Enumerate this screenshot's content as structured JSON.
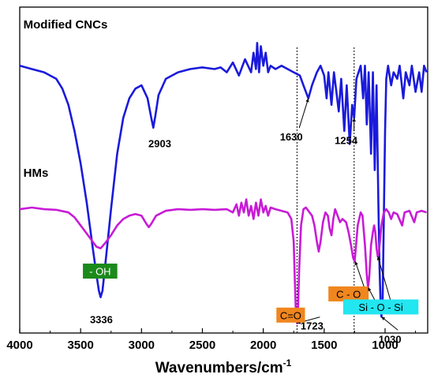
{
  "chart_data": {
    "type": "line",
    "xlabel": "Wavenumbers/cm",
    "xlabel_sup": "-1",
    "xlim": [
      4000,
      650
    ],
    "x_reversed": true,
    "x_ticks": [
      4000,
      3500,
      3000,
      2500,
      2000,
      1500,
      1000
    ],
    "y_ticks_visible": false,
    "grid": false,
    "series": [
      {
        "name": "Modified CNCs",
        "color": "#1a1adb",
        "points": [
          [
            4000,
            0.82
          ],
          [
            3900,
            0.81
          ],
          [
            3800,
            0.8
          ],
          [
            3700,
            0.78
          ],
          [
            3650,
            0.75
          ],
          [
            3600,
            0.7
          ],
          [
            3550,
            0.62
          ],
          [
            3500,
            0.52
          ],
          [
            3450,
            0.4
          ],
          [
            3400,
            0.26
          ],
          [
            3370,
            0.18
          ],
          [
            3350,
            0.13
          ],
          [
            3336,
            0.11
          ],
          [
            3320,
            0.13
          ],
          [
            3300,
            0.2
          ],
          [
            3250,
            0.38
          ],
          [
            3200,
            0.55
          ],
          [
            3150,
            0.66
          ],
          [
            3100,
            0.72
          ],
          [
            3050,
            0.75
          ],
          [
            3000,
            0.76
          ],
          [
            2950,
            0.72
          ],
          [
            2920,
            0.66
          ],
          [
            2903,
            0.63
          ],
          [
            2885,
            0.67
          ],
          [
            2860,
            0.73
          ],
          [
            2800,
            0.78
          ],
          [
            2700,
            0.8
          ],
          [
            2600,
            0.81
          ],
          [
            2500,
            0.815
          ],
          [
            2400,
            0.81
          ],
          [
            2350,
            0.815
          ],
          [
            2300,
            0.8
          ],
          [
            2250,
            0.83
          ],
          [
            2200,
            0.79
          ],
          [
            2150,
            0.84
          ],
          [
            2100,
            0.8
          ],
          [
            2080,
            0.86
          ],
          [
            2060,
            0.81
          ],
          [
            2050,
            0.89
          ],
          [
            2035,
            0.8
          ],
          [
            2020,
            0.88
          ],
          [
            2000,
            0.82
          ],
          [
            1980,
            0.86
          ],
          [
            1960,
            0.8
          ],
          [
            1940,
            0.82
          ],
          [
            1900,
            0.81
          ],
          [
            1850,
            0.82
          ],
          [
            1800,
            0.81
          ],
          [
            1750,
            0.8
          ],
          [
            1700,
            0.79
          ],
          [
            1660,
            0.75
          ],
          [
            1630,
            0.72
          ],
          [
            1600,
            0.76
          ],
          [
            1560,
            0.8
          ],
          [
            1530,
            0.82
          ],
          [
            1500,
            0.79
          ],
          [
            1480,
            0.72
          ],
          [
            1465,
            0.8
          ],
          [
            1440,
            0.7
          ],
          [
            1420,
            0.8
          ],
          [
            1400,
            0.74
          ],
          [
            1380,
            0.68
          ],
          [
            1360,
            0.78
          ],
          [
            1335,
            0.62
          ],
          [
            1315,
            0.76
          ],
          [
            1290,
            0.58
          ],
          [
            1270,
            0.7
          ],
          [
            1254,
            0.66
          ],
          [
            1235,
            0.78
          ],
          [
            1200,
            0.82
          ],
          [
            1180,
            0.72
          ],
          [
            1165,
            0.82
          ],
          [
            1150,
            0.64
          ],
          [
            1135,
            0.8
          ],
          [
            1115,
            0.55
          ],
          [
            1100,
            0.8
          ],
          [
            1085,
            0.5
          ],
          [
            1070,
            0.76
          ],
          [
            1055,
            0.4
          ],
          [
            1045,
            0.2
          ],
          [
            1035,
            0.07
          ],
          [
            1030,
            0.05
          ],
          [
            1020,
            0.1
          ],
          [
            1010,
            0.35
          ],
          [
            1000,
            0.62
          ],
          [
            990,
            0.78
          ],
          [
            975,
            0.82
          ],
          [
            950,
            0.76
          ],
          [
            930,
            0.8
          ],
          [
            900,
            0.78
          ],
          [
            880,
            0.82
          ],
          [
            850,
            0.72
          ],
          [
            830,
            0.8
          ],
          [
            800,
            0.76
          ],
          [
            780,
            0.82
          ],
          [
            750,
            0.74
          ],
          [
            720,
            0.8
          ],
          [
            700,
            0.74
          ],
          [
            680,
            0.82
          ],
          [
            660,
            0.8
          ]
        ]
      },
      {
        "name": "HMs",
        "color": "#c81bd6",
        "points": [
          [
            4000,
            0.38
          ],
          [
            3900,
            0.385
          ],
          [
            3800,
            0.38
          ],
          [
            3700,
            0.378
          ],
          [
            3600,
            0.37
          ],
          [
            3550,
            0.355
          ],
          [
            3500,
            0.33
          ],
          [
            3450,
            0.305
          ],
          [
            3400,
            0.28
          ],
          [
            3370,
            0.265
          ],
          [
            3336,
            0.26
          ],
          [
            3300,
            0.275
          ],
          [
            3250,
            0.3
          ],
          [
            3200,
            0.33
          ],
          [
            3150,
            0.35
          ],
          [
            3100,
            0.36
          ],
          [
            3050,
            0.365
          ],
          [
            3000,
            0.36
          ],
          [
            2960,
            0.335
          ],
          [
            2940,
            0.325
          ],
          [
            2920,
            0.335
          ],
          [
            2880,
            0.36
          ],
          [
            2800,
            0.375
          ],
          [
            2700,
            0.38
          ],
          [
            2600,
            0.378
          ],
          [
            2500,
            0.38
          ],
          [
            2400,
            0.378
          ],
          [
            2300,
            0.38
          ],
          [
            2250,
            0.37
          ],
          [
            2220,
            0.395
          ],
          [
            2200,
            0.36
          ],
          [
            2180,
            0.4
          ],
          [
            2160,
            0.37
          ],
          [
            2140,
            0.41
          ],
          [
            2120,
            0.36
          ],
          [
            2100,
            0.39
          ],
          [
            2080,
            0.35
          ],
          [
            2060,
            0.4
          ],
          [
            2040,
            0.36
          ],
          [
            2020,
            0.41
          ],
          [
            2000,
            0.37
          ],
          [
            1980,
            0.39
          ],
          [
            1960,
            0.36
          ],
          [
            1940,
            0.385
          ],
          [
            1900,
            0.38
          ],
          [
            1850,
            0.375
          ],
          [
            1800,
            0.37
          ],
          [
            1770,
            0.35
          ],
          [
            1750,
            0.28
          ],
          [
            1740,
            0.15
          ],
          [
            1732,
            0.06
          ],
          [
            1723,
            0.03
          ],
          [
            1715,
            0.07
          ],
          [
            1705,
            0.2
          ],
          [
            1690,
            0.33
          ],
          [
            1670,
            0.38
          ],
          [
            1650,
            0.385
          ],
          [
            1620,
            0.37
          ],
          [
            1600,
            0.36
          ],
          [
            1580,
            0.33
          ],
          [
            1560,
            0.28
          ],
          [
            1545,
            0.25
          ],
          [
            1530,
            0.28
          ],
          [
            1510,
            0.34
          ],
          [
            1490,
            0.37
          ],
          [
            1470,
            0.36
          ],
          [
            1455,
            0.32
          ],
          [
            1440,
            0.3
          ],
          [
            1425,
            0.35
          ],
          [
            1410,
            0.38
          ],
          [
            1390,
            0.36
          ],
          [
            1370,
            0.34
          ],
          [
            1350,
            0.35
          ],
          [
            1320,
            0.34
          ],
          [
            1300,
            0.31
          ],
          [
            1280,
            0.27
          ],
          [
            1262,
            0.23
          ],
          [
            1250,
            0.22
          ],
          [
            1240,
            0.26
          ],
          [
            1225,
            0.33
          ],
          [
            1200,
            0.37
          ],
          [
            1185,
            0.36
          ],
          [
            1165,
            0.27
          ],
          [
            1150,
            0.18
          ],
          [
            1140,
            0.14
          ],
          [
            1130,
            0.17
          ],
          [
            1115,
            0.27
          ],
          [
            1100,
            0.31
          ],
          [
            1090,
            0.33
          ],
          [
            1080,
            0.31
          ],
          [
            1070,
            0.26
          ],
          [
            1060,
            0.235
          ],
          [
            1050,
            0.25
          ],
          [
            1040,
            0.29
          ],
          [
            1030,
            0.33
          ],
          [
            1010,
            0.37
          ],
          [
            990,
            0.38
          ],
          [
            970,
            0.37
          ],
          [
            950,
            0.35
          ],
          [
            930,
            0.37
          ],
          [
            900,
            0.365
          ],
          [
            860,
            0.33
          ],
          [
            840,
            0.37
          ],
          [
            800,
            0.375
          ],
          [
            760,
            0.34
          ],
          [
            740,
            0.37
          ],
          [
            700,
            0.375
          ],
          [
            660,
            0.37
          ]
        ]
      }
    ],
    "series_labels": [
      {
        "text": "Modified CNCs",
        "x": 3970,
        "y": 0.935
      },
      {
        "text": "HMs",
        "x": 3970,
        "y": 0.48
      }
    ],
    "annotations": [
      {
        "text": "3336",
        "x": 3336,
        "y": 0.11,
        "tx": 3330,
        "ty": 0.04
      },
      {
        "text": "2903",
        "x": 2903,
        "y": 0.63,
        "tx": 2850,
        "ty": 0.58
      },
      {
        "text": "1630",
        "x": 1630,
        "y": 0.72,
        "tx": 1770,
        "ty": 0.6,
        "arrow": true
      },
      {
        "text": "1254",
        "x": 1254,
        "y": 0.66,
        "tx": 1320,
        "ty": 0.59,
        "arrow": true
      },
      {
        "text": "1030",
        "x": 1030,
        "y": 0.05,
        "tx": 960,
        "ty": -0.02,
        "arrow": true
      },
      {
        "text": "1723",
        "x": 1723,
        "y": 0.03,
        "tx": 1600,
        "ty": 0.02,
        "arrow": true
      }
    ],
    "boxed_labels": [
      {
        "text": "- OH",
        "x": 3340,
        "y": 0.19,
        "bg": "#1b8a1b",
        "fg": "#ffffff"
      },
      {
        "text": "C - O",
        "x": 1300,
        "y": 0.12,
        "bg": "#f0861e",
        "fg": "#000000",
        "arrow_to": [
          1245,
          0.22
        ]
      },
      {
        "text": "C=O",
        "x": 1775,
        "y": 0.055,
        "bg": "#f0861e",
        "fg": "#000000"
      },
      {
        "text": "Si - O - Si",
        "x": 1035,
        "y": 0.08,
        "bg": "#22e6f0",
        "fg": "#000000",
        "arrows_to": [
          [
            1140,
            0.14
          ],
          [
            1060,
            0.235
          ]
        ]
      }
    ],
    "reference_lines_x": [
      1723,
      1254
    ]
  }
}
